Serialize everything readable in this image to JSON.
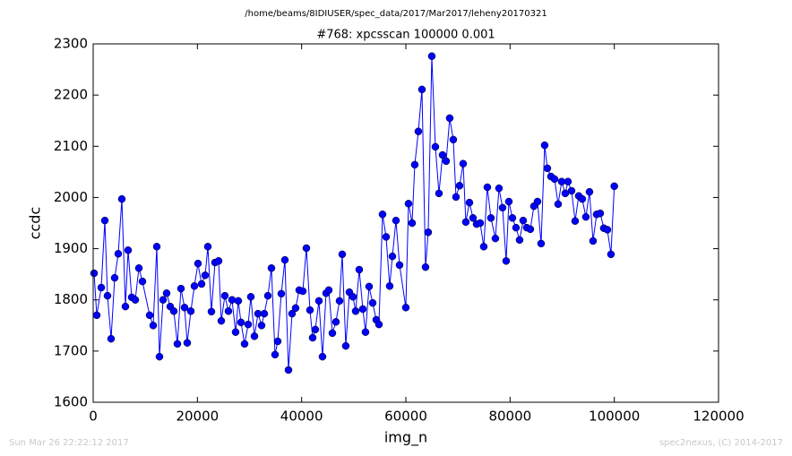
{
  "chart_data": {
    "type": "line",
    "suptitle": "/home/beams/8IDIUSER/spec_data/2017/Mar2017/leheny20170321",
    "title": "#768: xpcsscan 100000 0.001",
    "xlabel": "img_n",
    "ylabel": "ccdc",
    "footer_left": "Sun Mar 26 22:22:12 2017",
    "footer_right": "spec2nexus, (C) 2014-2017",
    "xlim": [
      0,
      120000
    ],
    "xticks": [
      0,
      20000,
      40000,
      60000,
      80000,
      100000,
      120000
    ],
    "ylim": [
      1600,
      2300
    ],
    "yticks": [
      1600,
      1700,
      1800,
      1900,
      2000,
      2100,
      2200,
      2300
    ],
    "series": [
      {
        "color": "#0000ff",
        "x": [
          172,
          688,
          1547,
          2235,
          2750,
          3438,
          4126,
          4813,
          5501,
          6188,
          6704,
          7392,
          8079,
          8767,
          9455,
          10830,
          11517,
          12205,
          12721,
          13408,
          14096,
          14783,
          15471,
          16159,
          16846,
          17534,
          18050,
          18737,
          19425,
          20112,
          20800,
          21488,
          22003,
          22691,
          23378,
          24066,
          24582,
          25269,
          25957,
          26645,
          27332,
          27848,
          28364,
          29051,
          29739,
          30254,
          30942,
          31630,
          32317,
          32833,
          33521,
          34208,
          34896,
          35411,
          36099,
          36787,
          37474,
          38162,
          38849,
          39537,
          40225,
          40912,
          41600,
          42116,
          42631,
          43319,
          44006,
          44694,
          45210,
          45897,
          46585,
          47273,
          47788,
          48476,
          49163,
          49851,
          50367,
          51054,
          51742,
          52258,
          52945,
          53633,
          54320,
          54836,
          55524,
          56211,
          56899,
          57415,
          58102,
          58790,
          59993,
          60509,
          61196,
          61712,
          62400,
          63087,
          63775,
          64291,
          64978,
          65666,
          66353,
          67041,
          67729,
          68416,
          69104,
          69620,
          70307,
          70995,
          71510,
          72198,
          72886,
          73573,
          74261,
          74948,
          75636,
          76324,
          77183,
          77871,
          78558,
          79246,
          79762,
          80449,
          81137,
          81824,
          82512,
          83200,
          83887,
          84575,
          85262,
          85950,
          86638,
          87153,
          87841,
          88529,
          89216,
          89904,
          90591,
          91107,
          91795,
          92482,
          93170,
          93857,
          94545,
          95233,
          95920,
          96608,
          97295,
          97983,
          98671,
          99358,
          100000
        ],
        "values": [
          1852,
          1770,
          1824,
          1955,
          1808,
          1724,
          1843,
          1890,
          1997,
          1787,
          1897,
          1805,
          1800,
          1862,
          1836,
          1770,
          1750,
          1904,
          1689,
          1800,
          1813,
          1787,
          1778,
          1714,
          1822,
          1785,
          1716,
          1778,
          1827,
          1871,
          1831,
          1848,
          1904,
          1777,
          1873,
          1876,
          1759,
          1808,
          1778,
          1800,
          1737,
          1798,
          1756,
          1714,
          1752,
          1806,
          1729,
          1773,
          1750,
          1773,
          1808,
          1862,
          1693,
          1719,
          1812,
          1878,
          1663,
          1773,
          1784,
          1819,
          1817,
          1901,
          1780,
          1726,
          1742,
          1798,
          1689,
          1813,
          1819,
          1735,
          1757,
          1798,
          1889,
          1710,
          1815,
          1806,
          1778,
          1859,
          1782,
          1737,
          1826,
          1794,
          1761,
          1752,
          1967,
          1923,
          1827,
          1885,
          1955,
          1868,
          1785,
          1988,
          1950,
          2064,
          2129,
          2211,
          1864,
          1932,
          2276,
          2099,
          2008,
          2083,
          2071,
          2155,
          2113,
          2001,
          2023,
          2066,
          1952,
          1990,
          1960,
          1948,
          1950,
          1904,
          2020,
          1960,
          1920,
          2018,
          1980,
          1876,
          1992,
          1960,
          1941,
          1917,
          1955,
          1941,
          1938,
          1983,
          1992,
          1910,
          2102,
          2057,
          2041,
          2036,
          1987,
          2031,
          2008,
          2031,
          2013,
          1954,
          2003,
          1997,
          1962,
          2011,
          1915,
          1967,
          1969,
          1940,
          1937,
          1889,
          2022
        ]
      }
    ]
  }
}
